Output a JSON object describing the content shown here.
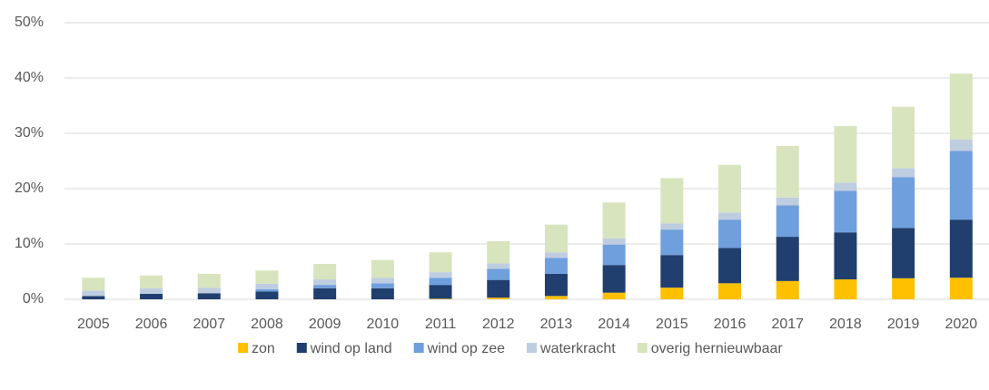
{
  "chart_data": {
    "type": "stacked_bar",
    "categories": [
      "2005",
      "2006",
      "2007",
      "2008",
      "2009",
      "2010",
      "2011",
      "2012",
      "2013",
      "2014",
      "2015",
      "2016",
      "2017",
      "2018",
      "2019",
      "2020"
    ],
    "series": [
      {
        "name": "zon",
        "color": "#ffc000",
        "values": [
          0,
          0,
          0,
          0,
          0,
          0,
          0.1,
          0.3,
          0.6,
          1.2,
          2.1,
          2.9,
          3.3,
          3.6,
          3.8,
          3.9
        ]
      },
      {
        "name": "wind op land",
        "color": "#203f6f",
        "values": [
          0.6,
          1.0,
          1.1,
          1.4,
          2.0,
          2.0,
          2.5,
          3.2,
          4.0,
          5.0,
          5.9,
          6.4,
          8.0,
          8.5,
          9.1,
          10.5
        ]
      },
      {
        "name": "wind op zee",
        "color": "#6f9fdd",
        "values": [
          0,
          0,
          0,
          0.4,
          0.6,
          0.9,
          1.3,
          2.0,
          2.9,
          3.7,
          4.6,
          5.1,
          5.7,
          7.5,
          9.2,
          12.4
        ]
      },
      {
        "name": "waterkracht",
        "color": "#bfcde0",
        "values": [
          1.0,
          1.0,
          1.0,
          1.0,
          1.0,
          1.0,
          1.0,
          1.0,
          1.0,
          1.1,
          1.1,
          1.3,
          1.4,
          1.5,
          1.6,
          2.1
        ]
      },
      {
        "name": "overig hernieuwbaar",
        "color": "#d7e4bd",
        "values": [
          2.3,
          2.3,
          2.5,
          2.4,
          2.8,
          3.2,
          3.6,
          4.0,
          5.0,
          6.5,
          8.2,
          8.6,
          9.3,
          10.2,
          11.1,
          11.9
        ]
      }
    ],
    "ylim": [
      0,
      50
    ],
    "yticks": [
      {
        "value": 0,
        "label": "0%"
      },
      {
        "value": 10,
        "label": "10%"
      },
      {
        "value": 20,
        "label": "20%"
      },
      {
        "value": 30,
        "label": "30%"
      },
      {
        "value": 40,
        "label": "40%"
      },
      {
        "value": 50,
        "label": "50%"
      }
    ],
    "grid": true,
    "legend": "bottom"
  }
}
